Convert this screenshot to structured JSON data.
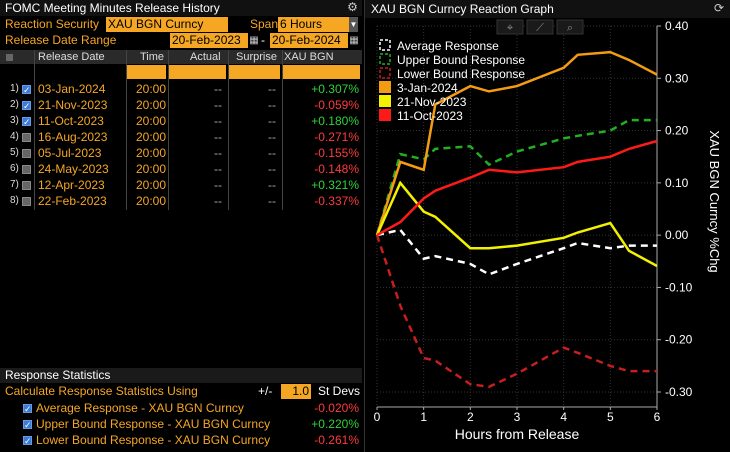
{
  "left": {
    "title": "FOMC Meeting Minutes Release History",
    "reaction_security_label": "Reaction Security",
    "reaction_security_value": "XAU BGN Curncy",
    "span_label": "Span",
    "span_value": "6 Hours",
    "release_range_label": "Release Date Range",
    "date_from": "20-Feb-2023",
    "date_sep": "-",
    "date_to": "20-Feb-2024",
    "columns": {
      "release_date": "Release Date",
      "time": "Time",
      "actual": "Actual",
      "surprise": "Surprise",
      "change": "XAU BGN %Chg"
    },
    "rows": [
      {
        "idx": "1)",
        "checked": true,
        "date": "03-Jan-2024",
        "time": "20:00",
        "actual": "--",
        "surprise": "--",
        "chg": "+0.307%",
        "sign": "pos"
      },
      {
        "idx": "2)",
        "checked": true,
        "date": "21-Nov-2023",
        "time": "20:00",
        "actual": "--",
        "surprise": "--",
        "chg": "-0.059%",
        "sign": "neg"
      },
      {
        "idx": "3)",
        "checked": true,
        "date": "11-Oct-2023",
        "time": "20:00",
        "actual": "--",
        "surprise": "--",
        "chg": "+0.180%",
        "sign": "pos"
      },
      {
        "idx": "4)",
        "checked": false,
        "date": "16-Aug-2023",
        "time": "20:00",
        "actual": "--",
        "surprise": "--",
        "chg": "-0.271%",
        "sign": "neg"
      },
      {
        "idx": "5)",
        "checked": false,
        "date": "05-Jul-2023",
        "time": "20:00",
        "actual": "--",
        "surprise": "--",
        "chg": "-0.155%",
        "sign": "neg"
      },
      {
        "idx": "6)",
        "checked": false,
        "date": "24-May-2023",
        "time": "20:00",
        "actual": "--",
        "surprise": "--",
        "chg": "-0.148%",
        "sign": "neg"
      },
      {
        "idx": "7)",
        "checked": false,
        "date": "12-Apr-2023",
        "time": "20:00",
        "actual": "--",
        "surprise": "--",
        "chg": "+0.321%",
        "sign": "pos"
      },
      {
        "idx": "8)",
        "checked": false,
        "date": "22-Feb-2023",
        "time": "20:00",
        "actual": "--",
        "surprise": "--",
        "chg": "-0.337%",
        "sign": "neg"
      }
    ],
    "stats": {
      "title": "Response Statistics",
      "calc_label": "Calculate Response Statistics Using",
      "pm": "+/-",
      "stdev_value": "1.0",
      "stdev_label": "St Devs",
      "items": [
        {
          "label": "Average Response - XAU BGN Curncy",
          "value": "-0.020%",
          "sign": "neg"
        },
        {
          "label": "Upper Bound Response - XAU BGN Curncy",
          "value": "+0.220%",
          "sign": "pos"
        },
        {
          "label": "Lower Bound Response - XAU BGN Curncy",
          "value": "-0.261%",
          "sign": "neg"
        }
      ]
    }
  },
  "right": {
    "title": "XAU BGN Curncy Reaction Graph",
    "tool_icons": [
      "crosshair-icon",
      "line-tool-icon",
      "zoom-icon"
    ]
  },
  "chart_data": {
    "type": "line",
    "xlabel": "Hours from Release",
    "ylabel": "XAU BGN Curncy %Chg",
    "xlim": [
      0,
      6
    ],
    "ylim": [
      -0.3,
      0.4
    ],
    "xticks": [
      "0",
      "1",
      "2",
      "3",
      "4",
      "5",
      "6"
    ],
    "yticks": [
      "0.40",
      "0.30",
      "0.20",
      "0.10",
      "0.00",
      "-0.10",
      "-0.20",
      "-0.30"
    ],
    "grid": true,
    "legend_position": "top-left",
    "series": [
      {
        "name": "Average Response",
        "color": "#ffffff",
        "dash": true,
        "x": [
          0,
          0.5,
          1,
          1.25,
          2,
          2.4,
          3,
          4,
          4.3,
          5,
          5.4,
          6
        ],
        "y": [
          0,
          0.01,
          -0.045,
          -0.04,
          -0.055,
          -0.075,
          -0.055,
          -0.025,
          -0.015,
          -0.025,
          -0.02,
          -0.02
        ]
      },
      {
        "name": "Upper Bound Response",
        "color": "#21b021",
        "dash": true,
        "x": [
          0,
          0.5,
          1,
          1.25,
          2,
          2.4,
          3,
          4,
          4.3,
          5,
          5.4,
          6
        ],
        "y": [
          0,
          0.155,
          0.145,
          0.165,
          0.17,
          0.135,
          0.16,
          0.185,
          0.19,
          0.2,
          0.22,
          0.22
        ]
      },
      {
        "name": "Lower Bound Response",
        "color": "#c81e1e",
        "dash": true,
        "x": [
          0,
          0.5,
          1,
          1.25,
          2,
          2.4,
          3,
          4,
          4.3,
          5,
          5.4,
          6
        ],
        "y": [
          0,
          -0.135,
          -0.235,
          -0.24,
          -0.285,
          -0.29,
          -0.265,
          -0.215,
          -0.225,
          -0.25,
          -0.26,
          -0.26
        ]
      },
      {
        "name": "3-Jan-2024",
        "color": "#f39c12",
        "dash": false,
        "x": [
          0,
          0.5,
          1,
          1.25,
          2,
          2.4,
          3,
          4,
          4.3,
          5,
          5.4,
          6
        ],
        "y": [
          0,
          0.14,
          0.125,
          0.25,
          0.285,
          0.275,
          0.285,
          0.32,
          0.345,
          0.35,
          0.335,
          0.307
        ]
      },
      {
        "name": "21-Nov-2023",
        "color": "#f1f100",
        "dash": false,
        "x": [
          0,
          0.5,
          1,
          1.25,
          2,
          2.4,
          3,
          4,
          4.3,
          5,
          5.4,
          6
        ],
        "y": [
          0,
          0.1,
          0.045,
          0.035,
          -0.025,
          -0.025,
          -0.02,
          -0.005,
          0.005,
          0.023,
          -0.03,
          -0.059
        ]
      },
      {
        "name": "11-Oct-2023",
        "color": "#ff1a1a",
        "dash": false,
        "x": [
          0,
          0.5,
          1,
          1.25,
          2,
          2.4,
          3,
          4,
          4.3,
          5,
          5.4,
          6
        ],
        "y": [
          0,
          0.025,
          0.07,
          0.085,
          0.11,
          0.125,
          0.12,
          0.13,
          0.14,
          0.15,
          0.165,
          0.18
        ]
      }
    ]
  }
}
